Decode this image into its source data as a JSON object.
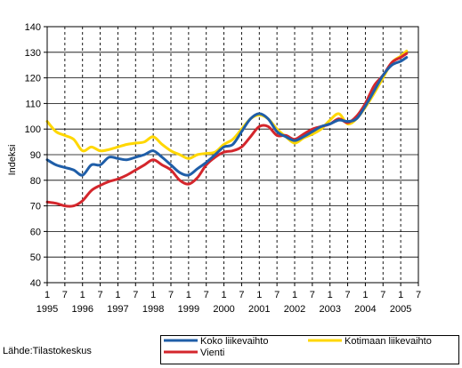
{
  "chart_data": {
    "type": "line",
    "ylabel": "Indeksi",
    "ylim": [
      40,
      140
    ],
    "yticks": [
      40,
      50,
      60,
      70,
      80,
      90,
      100,
      110,
      120,
      130,
      140
    ],
    "x_start": "1995-01",
    "x_end": "2005-07",
    "month_tick_labels": [
      "1",
      "7",
      "1",
      "7",
      "1",
      "7",
      "1",
      "7",
      "1",
      "7",
      "1",
      "7",
      "1",
      "7",
      "1",
      "7",
      "1",
      "7",
      "1",
      "7",
      "1",
      "7"
    ],
    "year_labels": [
      "1995",
      "1996",
      "1997",
      "1998",
      "1999",
      "2000",
      "2001",
      "2002",
      "2003",
      "2004",
      "2005"
    ],
    "grid": "vertical dashed at each half-year tick",
    "legend_position": "bottom-right",
    "series": [
      {
        "name": "Koko liikevaihto",
        "color": "#1f5ea8",
        "points": [
          [
            "1995-01",
            88
          ],
          [
            "1995-04",
            86
          ],
          [
            "1995-07",
            85
          ],
          [
            "1995-10",
            84
          ],
          [
            "1996-01",
            82
          ],
          [
            "1996-04",
            86
          ],
          [
            "1996-07",
            86
          ],
          [
            "1996-10",
            89
          ],
          [
            "1997-01",
            88.5
          ],
          [
            "1997-04",
            88
          ],
          [
            "1997-07",
            89
          ],
          [
            "1997-10",
            90
          ],
          [
            "1998-01",
            91.5
          ],
          [
            "1998-04",
            89
          ],
          [
            "1998-07",
            86
          ],
          [
            "1998-10",
            83
          ],
          [
            "1999-01",
            82
          ],
          [
            "1999-04",
            84.5
          ],
          [
            "1999-07",
            87
          ],
          [
            "1999-10",
            90
          ],
          [
            "2000-01",
            93
          ],
          [
            "2000-04",
            94
          ],
          [
            "2000-07",
            99
          ],
          [
            "2000-10",
            104
          ],
          [
            "2001-01",
            106
          ],
          [
            "2001-04",
            104
          ],
          [
            "2001-07",
            99
          ],
          [
            "2001-10",
            97
          ],
          [
            "2002-01",
            95.5
          ],
          [
            "2002-04",
            97
          ],
          [
            "2002-07",
            99
          ],
          [
            "2002-10",
            101
          ],
          [
            "2003-01",
            102
          ],
          [
            "2003-04",
            103.5
          ],
          [
            "2003-07",
            103
          ],
          [
            "2003-10",
            104
          ],
          [
            "2004-01",
            109
          ],
          [
            "2004-04",
            115
          ],
          [
            "2004-07",
            121
          ],
          [
            "2004-10",
            125
          ],
          [
            "2005-01",
            126.5
          ],
          [
            "2005-03",
            128
          ]
        ]
      },
      {
        "name": "Kotimaan liikevaihto",
        "color": "#ffd700",
        "points": [
          [
            "1995-01",
            103
          ],
          [
            "1995-04",
            99
          ],
          [
            "1995-07",
            97.5
          ],
          [
            "1995-10",
            96
          ],
          [
            "1996-01",
            91.5
          ],
          [
            "1996-04",
            93
          ],
          [
            "1996-07",
            91.5
          ],
          [
            "1996-10",
            92
          ],
          [
            "1997-01",
            93
          ],
          [
            "1997-04",
            94
          ],
          [
            "1997-07",
            94.5
          ],
          [
            "1997-10",
            95
          ],
          [
            "1998-01",
            97
          ],
          [
            "1998-04",
            94
          ],
          [
            "1998-07",
            91.5
          ],
          [
            "1998-10",
            90
          ],
          [
            "1999-01",
            88.5
          ],
          [
            "1999-04",
            90
          ],
          [
            "1999-07",
            90.5
          ],
          [
            "1999-10",
            91
          ],
          [
            "2000-01",
            94
          ],
          [
            "2000-04",
            96
          ],
          [
            "2000-07",
            100
          ],
          [
            "2000-10",
            104
          ],
          [
            "2001-01",
            105.5
          ],
          [
            "2001-04",
            104
          ],
          [
            "2001-07",
            100
          ],
          [
            "2001-10",
            97
          ],
          [
            "2002-01",
            94.5
          ],
          [
            "2002-04",
            96.5
          ],
          [
            "2002-07",
            98
          ],
          [
            "2002-10",
            100
          ],
          [
            "2003-01",
            103.5
          ],
          [
            "2003-04",
            106
          ],
          [
            "2003-07",
            102
          ],
          [
            "2003-10",
            104
          ],
          [
            "2004-01",
            108.5
          ],
          [
            "2004-04",
            114
          ],
          [
            "2004-07",
            120
          ],
          [
            "2004-10",
            126
          ],
          [
            "2005-01",
            128.5
          ],
          [
            "2005-03",
            130.5
          ]
        ]
      },
      {
        "name": "Vienti",
        "color": "#d4262c",
        "points": [
          [
            "1995-01",
            71.5
          ],
          [
            "1995-04",
            71
          ],
          [
            "1995-07",
            70
          ],
          [
            "1995-10",
            70
          ],
          [
            "1996-01",
            72
          ],
          [
            "1996-04",
            76
          ],
          [
            "1996-07",
            78
          ],
          [
            "1996-10",
            79.5
          ],
          [
            "1997-01",
            80.5
          ],
          [
            "1997-04",
            82
          ],
          [
            "1997-07",
            84
          ],
          [
            "1997-10",
            86
          ],
          [
            "1998-01",
            88
          ],
          [
            "1998-04",
            86
          ],
          [
            "1998-07",
            84
          ],
          [
            "1998-10",
            80
          ],
          [
            "1999-01",
            78.5
          ],
          [
            "1999-04",
            81
          ],
          [
            "1999-07",
            86
          ],
          [
            "1999-10",
            89
          ],
          [
            "2000-01",
            91
          ],
          [
            "2000-04",
            91.5
          ],
          [
            "2000-07",
            93
          ],
          [
            "2000-10",
            97
          ],
          [
            "2001-01",
            101
          ],
          [
            "2001-04",
            101
          ],
          [
            "2001-07",
            97.5
          ],
          [
            "2001-10",
            97.5
          ],
          [
            "2002-01",
            96
          ],
          [
            "2002-04",
            98
          ],
          [
            "2002-07",
            100
          ],
          [
            "2002-10",
            101
          ],
          [
            "2003-01",
            102
          ],
          [
            "2003-04",
            104
          ],
          [
            "2003-07",
            102.5
          ],
          [
            "2003-10",
            105
          ],
          [
            "2004-01",
            110
          ],
          [
            "2004-04",
            117
          ],
          [
            "2004-07",
            121
          ],
          [
            "2004-10",
            126
          ],
          [
            "2005-01",
            128
          ],
          [
            "2005-03",
            129.5
          ]
        ]
      }
    ]
  },
  "source": "Lähde:Tilastokeskus"
}
